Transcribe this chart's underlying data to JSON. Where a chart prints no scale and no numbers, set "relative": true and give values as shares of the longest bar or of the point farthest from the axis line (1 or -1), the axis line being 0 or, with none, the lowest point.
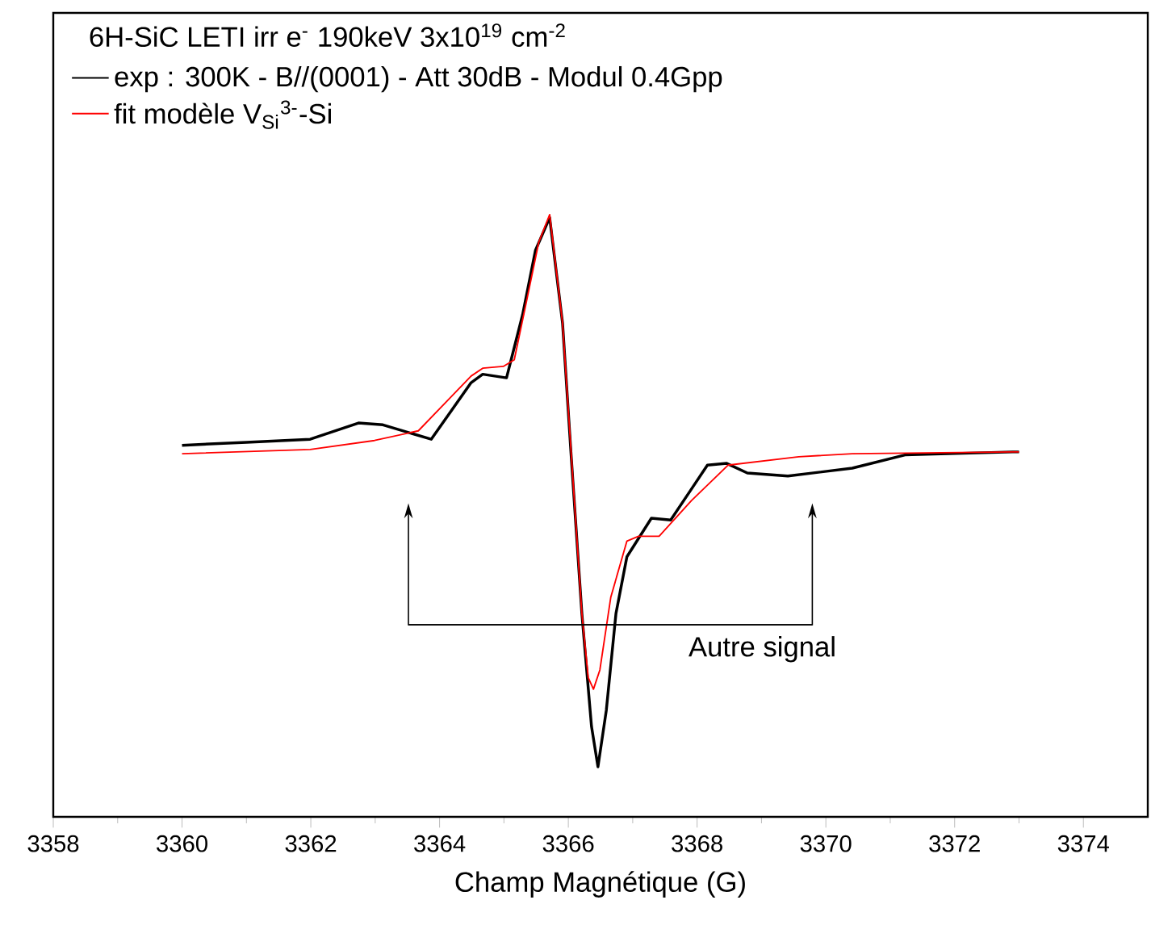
{
  "chart_data": {
    "type": "line",
    "relative": true,
    "xlabel": "Champ Magnétique (G)",
    "legend_title": "6H-SiC LETI irr e$^{-}$ 190keV 3x10$^{19}$ cm$^{-2}$",
    "legend": "top left",
    "annotations": [
      "Autre signal"
    ],
    "xlim": [
      3358,
      3375
    ],
    "xticks": [
      3358,
      3360,
      3362,
      3364,
      3366,
      3368,
      3370,
      3372,
      3374
    ],
    "marker": "none",
    "line_style": "solid",
    "grid": false,
    "series": [
      {
        "name": "exp : 300K - B//(0001) - Att 30dB - Modul 0.4Gpp",
        "color": "#000000",
        "x": [
          3360,
          3361,
          3361.99,
          3362.74,
          3363.12,
          3363.87,
          3364.49,
          3364.67,
          3365.04,
          3365.29,
          3365.49,
          3365.71,
          3365.91,
          3366.04,
          3366.21,
          3366.36,
          3366.46,
          3366.59,
          3366.74,
          3366.91,
          3367.29,
          3367.59,
          3367.91,
          3368.16,
          3368.46,
          3368.78,
          3369.41,
          3370.41,
          3371.23,
          3372.9,
          3373.0
        ],
        "values": [
          0.617,
          0.622,
          0.627,
          0.654,
          0.651,
          0.627,
          0.721,
          0.735,
          0.729,
          0.834,
          0.941,
          0.995,
          0.82,
          0.606,
          0.338,
          0.15,
          0.083,
          0.177,
          0.338,
          0.432,
          0.496,
          0.493,
          0.544,
          0.584,
          0.587,
          0.571,
          0.566,
          0.579,
          0.601,
          0.606,
          0.606
        ]
      },
      {
        "name": "fit modèle V$_{Si}$$^{3-}$-Si",
        "color": "#ff0000",
        "x": [
          3360,
          3361.99,
          3362.99,
          3363.67,
          3364.49,
          3364.67,
          3364.99,
          3365.16,
          3365.36,
          3365.54,
          3365.71,
          3365.91,
          3366.06,
          3366.21,
          3366.31,
          3366.39,
          3366.49,
          3366.66,
          3366.91,
          3367.09,
          3367.41,
          3367.91,
          3368.48,
          3369.58,
          3370.41,
          3372.9,
          3373.0
        ],
        "values": [
          0.603,
          0.61,
          0.625,
          0.641,
          0.732,
          0.745,
          0.748,
          0.759,
          0.861,
          0.954,
          1.0,
          0.82,
          0.579,
          0.338,
          0.231,
          0.212,
          0.244,
          0.365,
          0.458,
          0.466,
          0.466,
          0.525,
          0.584,
          0.598,
          0.603,
          0.606,
          0.606
        ]
      }
    ]
  }
}
